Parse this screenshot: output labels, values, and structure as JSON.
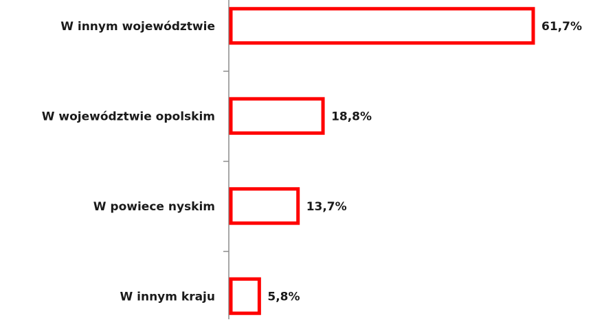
{
  "chart_data": {
    "type": "bar",
    "orientation": "horizontal",
    "categories": [
      "W innym województwie",
      "W województwie opolskim",
      "W powiece nyskim",
      "W innym kraju"
    ],
    "values": [
      61.7,
      18.8,
      13.7,
      5.8
    ],
    "value_labels": [
      "61,7%",
      "18,8%",
      "13,7%",
      "5,8%"
    ],
    "color": "#ff0000"
  }
}
